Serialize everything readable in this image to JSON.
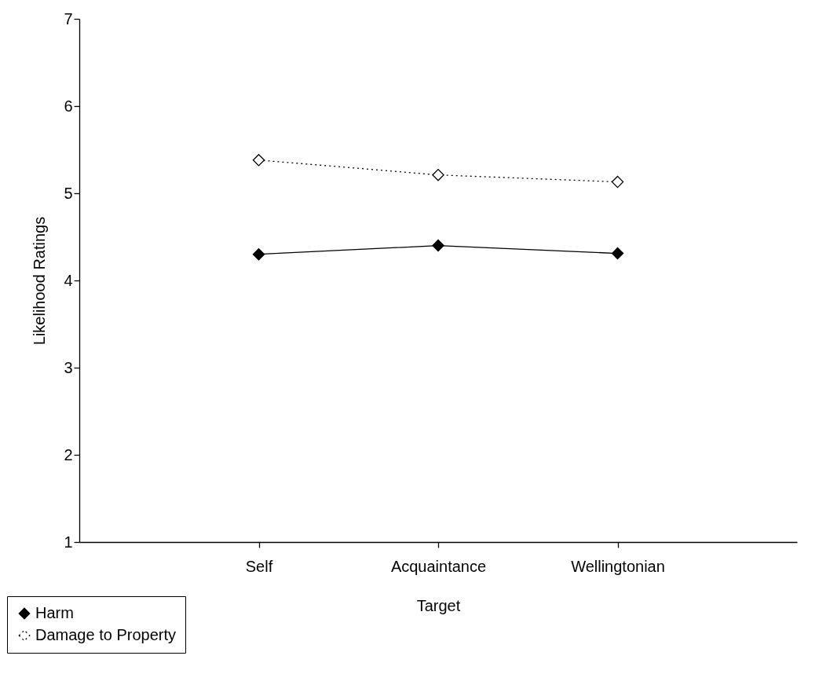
{
  "chart_data": {
    "type": "line",
    "xlabel": "Target",
    "ylabel": "Likelihood Ratings",
    "categories": [
      "Self",
      "Acquaintance",
      "Wellingtonian"
    ],
    "ylim": [
      1,
      7
    ],
    "yticks": [
      1,
      2,
      3,
      4,
      5,
      6,
      7
    ],
    "grid": false,
    "legend": "bottom left",
    "series": [
      {
        "name": "Harm",
        "color": "#000000",
        "line_style": "solid",
        "marker": "diamond",
        "values": [
          4.3,
          4.4,
          4.31
        ]
      },
      {
        "name": "Damage to Property",
        "color": "#000000",
        "line_style": "dotted",
        "marker": "diamond",
        "values": [
          5.38,
          5.21,
          5.13
        ]
      }
    ]
  }
}
